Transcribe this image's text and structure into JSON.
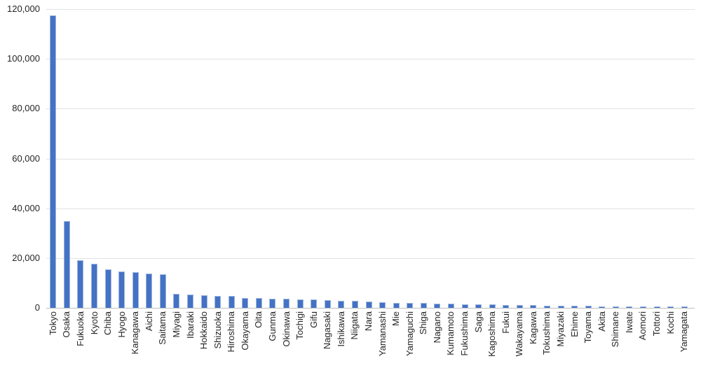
{
  "chart_data": {
    "type": "bar",
    "title": "",
    "xlabel": "",
    "ylabel": "",
    "ylim": [
      0,
      120000
    ],
    "ytick_step": 20000,
    "ytick_values": [
      0,
      20000,
      40000,
      60000,
      80000,
      100000,
      120000
    ],
    "ytick_labels": [
      "0",
      "20,000",
      "40,000",
      "60,000",
      "80,000",
      "100,000",
      "120,000"
    ],
    "grid": true,
    "legend": false,
    "bar_color": "#4472C4",
    "bar_edge_color": "#9DB6E0",
    "gridline_color": "#E2E2E2",
    "axis_line_color": "#BFBFBF",
    "label_color": "#262626",
    "categories": [
      "Tokyo",
      "Osaka",
      "Fukuoka",
      "Kyoto",
      "Chiba",
      "Hyogo",
      "Kanagawa",
      "Aichi",
      "Saitama",
      "Miyagi",
      "Ibaraki",
      "Hokkaido",
      "Shizuoka",
      "Hiroshima",
      "Okayama",
      "Oita",
      "Gunma",
      "Okinawa",
      "Tochigi",
      "Gifu",
      "Nagasaki",
      "Ishikawa",
      "Niigata",
      "Nara",
      "Yamanashi",
      "Mie",
      "Yamaguchi",
      "Shiga",
      "Nagano",
      "Kumamoto",
      "Fukushima",
      "Saga",
      "Kagoshima",
      "Fukui",
      "Wakayama",
      "Kagawa",
      "Tokushima",
      "Miyazaki",
      "Ehime",
      "Toyama",
      "Akita",
      "Shimane",
      "Iwate",
      "Aomori",
      "Tottori",
      "Kochi",
      "Yamagata"
    ],
    "values": [
      117400,
      34800,
      19100,
      17700,
      15500,
      14600,
      14300,
      13800,
      13500,
      5600,
      5300,
      5000,
      4900,
      4700,
      4000,
      3900,
      3700,
      3600,
      3500,
      3300,
      3100,
      2900,
      2800,
      2400,
      2200,
      2100,
      2000,
      1900,
      1800,
      1700,
      1500,
      1400,
      1300,
      1200,
      1100,
      1000,
      950,
      850,
      780,
      720,
      660,
      610,
      560,
      520,
      470,
      430,
      400
    ]
  }
}
